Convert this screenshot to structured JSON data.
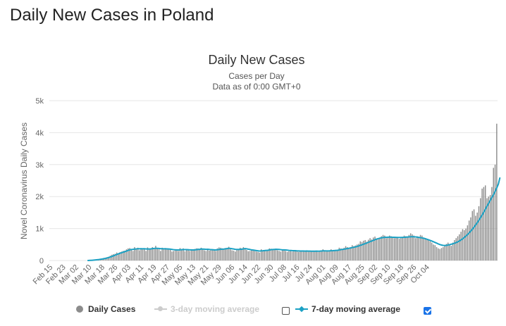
{
  "page": {
    "heading": "Daily New Cases in Poland"
  },
  "chart_data": {
    "type": "bar",
    "title": "Daily New Cases",
    "subtitle1": "Cases per Day",
    "subtitle2": "Data as of 0:00 GMT+0",
    "ylabel": "Novel Coronavirus Daily Cases",
    "xlabel": "",
    "ylim": [
      0,
      5000
    ],
    "yticks": [
      0,
      1000,
      2000,
      3000,
      4000,
      5000
    ],
    "ytick_labels": [
      "0",
      "1k",
      "2k",
      "3k",
      "4k",
      "5k"
    ],
    "xtick_labels": [
      "Feb 15",
      "Feb 23",
      "Mar 02",
      "Mar 10",
      "Mar 18",
      "Mar 26",
      "Apr 03",
      "Apr 11",
      "Apr 19",
      "Apr 27",
      "May 05",
      "May 13",
      "May 21",
      "May 29",
      "Jun 06",
      "Jun 14",
      "Jun 22",
      "Jun 30",
      "Jul 08",
      "Jul 16",
      "Jul 24",
      "Aug 01",
      "Aug 09",
      "Aug 17",
      "Aug 25",
      "Sep 02",
      "Sep 10",
      "Sep 18",
      "Sep 26",
      "Oct 04"
    ],
    "series": [
      {
        "name": "Daily Cases",
        "color": "#8c8c8c",
        "values": [
          0,
          0,
          0,
          0,
          0,
          0,
          0,
          0,
          0,
          0,
          0,
          0,
          0,
          0,
          0,
          0,
          0,
          0,
          0,
          0,
          0,
          0,
          0,
          0,
          5,
          8,
          11,
          16,
          25,
          35,
          40,
          55,
          60,
          80,
          90,
          105,
          120,
          150,
          180,
          200,
          210,
          250,
          230,
          260,
          280,
          300,
          310,
          350,
          380,
          390,
          330,
          300,
          420,
          380,
          400,
          320,
          380,
          350,
          360,
          300,
          410,
          360,
          380,
          420,
          390,
          460,
          380,
          350,
          300,
          400,
          380,
          390,
          370,
          350,
          330,
          280,
          300,
          320,
          340,
          300,
          390,
          360,
          380,
          290,
          350,
          330,
          300,
          330,
          320,
          360,
          380,
          380,
          360,
          400,
          350,
          320,
          300,
          370,
          310,
          330,
          340,
          320,
          300,
          380,
          410,
          400,
          380,
          360,
          390,
          400,
          430,
          350,
          320,
          310,
          280,
          330,
          360,
          400,
          380,
          420,
          390,
          330,
          290,
          300,
          320,
          340,
          300,
          280,
          270,
          250,
          350,
          310,
          330,
          330,
          340,
          380,
          370,
          350,
          340,
          360,
          320,
          300,
          280,
          320,
          340,
          300,
          270,
          290,
          300,
          280,
          320,
          330,
          290,
          270,
          290,
          300,
          280,
          310,
          320,
          280,
          300,
          290,
          310,
          280,
          300,
          270,
          290,
          320,
          350,
          300,
          280,
          300,
          310,
          350,
          300,
          320,
          330,
          340,
          400,
          380,
          370,
          400,
          450,
          420,
          380,
          420,
          480,
          450,
          470,
          500,
          520,
          600,
          580,
          620,
          640,
          590,
          650,
          700,
          660,
          720,
          750,
          680,
          700,
          720,
          760,
          800,
          780,
          700,
          740,
          780,
          760,
          720,
          700,
          720,
          740,
          680,
          700,
          720,
          780,
          760,
          740,
          800,
          850,
          820,
          780,
          700,
          760,
          740,
          800,
          780,
          720,
          700,
          660,
          640,
          600,
          560,
          500,
          480,
          420,
          380,
          360,
          390,
          420,
          480,
          520,
          560,
          500,
          460,
          560,
          640,
          700,
          760,
          820,
          900,
          980,
          950,
          1000,
          1100,
          1250,
          1350,
          1550,
          1600,
          1400,
          1500,
          1700,
          1950,
          2250,
          2300,
          2350,
          1950,
          2000,
          2050,
          2300,
          2900,
          3000,
          4280
        ]
      },
      {
        "name": "3-day moving average",
        "color": "#cccccc",
        "visible": false,
        "values": []
      },
      {
        "name": "7-day moving average",
        "color": "#1ba1c4",
        "values": [
          0,
          0,
          0,
          0,
          0,
          0,
          0,
          0,
          0,
          0,
          0,
          0,
          0,
          0,
          0,
          0,
          0,
          0,
          0,
          0,
          0,
          0,
          0,
          0,
          4,
          6,
          9,
          13,
          18,
          24,
          30,
          38,
          46,
          56,
          66,
          78,
          92,
          110,
          128,
          148,
          168,
          190,
          208,
          226,
          244,
          262,
          278,
          296,
          316,
          334,
          344,
          350,
          358,
          362,
          370,
          366,
          370,
          366,
          368,
          360,
          364,
          360,
          364,
          372,
          376,
          384,
          380,
          376,
          370,
          370,
          366,
          366,
          364,
          362,
          356,
          348,
          340,
          336,
          334,
          330,
          336,
          338,
          344,
          340,
          340,
          338,
          334,
          334,
          330,
          334,
          338,
          346,
          350,
          360,
          358,
          356,
          350,
          352,
          346,
          340,
          338,
          334,
          330,
          338,
          344,
          352,
          356,
          358,
          366,
          372,
          384,
          378,
          368,
          360,
          350,
          346,
          346,
          350,
          354,
          364,
          372,
          366,
          356,
          346,
          334,
          328,
          320,
          312,
          304,
          296,
          304,
          306,
          312,
          316,
          320,
          330,
          338,
          344,
          348,
          352,
          350,
          346,
          340,
          334,
          332,
          330,
          324,
          318,
          314,
          310,
          308,
          306,
          302,
          300,
          298,
          298,
          296,
          294,
          296,
          294,
          294,
          292,
          292,
          292,
          294,
          292,
          294,
          298,
          302,
          302,
          300,
          300,
          302,
          306,
          308,
          312,
          316,
          320,
          330,
          340,
          346,
          354,
          364,
          374,
          382,
          392,
          404,
          414,
          426,
          440,
          456,
          474,
          492,
          510,
          530,
          550,
          570,
          590,
          610,
          630,
          650,
          670,
          684,
          698,
          710,
          718,
          724,
          728,
          730,
          732,
          730,
          728,
          726,
          724,
          722,
          720,
          722,
          724,
          726,
          730,
          734,
          738,
          742,
          744,
          742,
          738,
          732,
          724,
          716,
          706,
          696,
          684,
          666,
          648,
          630,
          610,
          588,
          566,
          544,
          520,
          500,
          484,
          474,
          470,
          474,
          484,
          496,
          510,
          524,
          540,
          560,
          584,
          612,
          644,
          680,
          720,
          764,
          812,
          864,
          920,
          980,
          1044,
          1112,
          1184,
          1260,
          1340,
          1424,
          1512,
          1604,
          1700,
          1790,
          1880,
          1970,
          2060,
          2160,
          2270,
          2390,
          2600
        ]
      }
    ],
    "legend": [
      {
        "label": "Daily Cases",
        "enabled": true
      },
      {
        "label": "3-day moving average",
        "enabled": false,
        "toggle_checked": false
      },
      {
        "label": "7-day moving average",
        "enabled": true,
        "toggle_checked": true
      }
    ],
    "colors": {
      "bars": "#8c8c8c",
      "line": "#1ba1c4",
      "grid": "#e6e6e6",
      "disabled": "#cccccc",
      "checkbox": "#1a73e8"
    }
  }
}
